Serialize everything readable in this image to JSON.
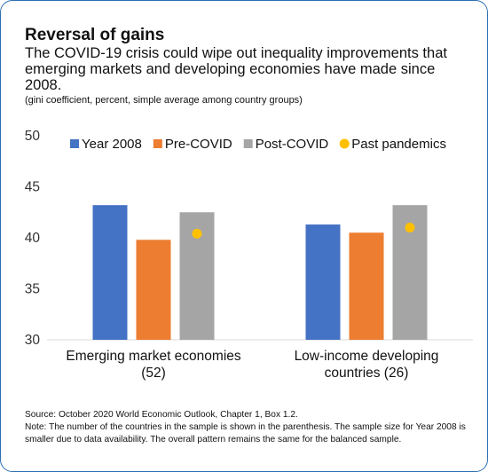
{
  "header": {
    "title": "Reversal of gains",
    "subtitle": "The COVID-19 crisis could wipe out inequality improvements that emerging markets and developing economies have made since 2008.",
    "units": "(gini coefficient, percent, simple average among country groups)"
  },
  "footer": {
    "source": "Source: October 2020 World Economic Outlook, Chapter 1, Box 1.2.",
    "note": "Note: The number of the countries in the sample is shown in the parenthesis. The sample size for Year 2008 is smaller due to data availability. The overall pattern remains the same for the balanced sample."
  },
  "chart_data": {
    "type": "bar",
    "categories": [
      [
        "Emerging market economies",
        "(52)"
      ],
      [
        "Low-income developing",
        "countries (26)"
      ]
    ],
    "series": [
      {
        "name": "Year 2008",
        "values": [
          43.2,
          41.3
        ],
        "color": "#4472c4",
        "kind": "bar"
      },
      {
        "name": "Pre-COVID",
        "values": [
          39.8,
          40.5
        ],
        "color": "#ed7d31",
        "kind": "bar"
      },
      {
        "name": "Post-COVID",
        "values": [
          42.5,
          43.2
        ],
        "color": "#a5a5a5",
        "kind": "bar"
      },
      {
        "name": "Past pandemics",
        "values": [
          40.4,
          41.0
        ],
        "color": "#ffc000",
        "kind": "point"
      }
    ],
    "ylim": [
      30,
      50
    ],
    "yticks": [
      30,
      35,
      40,
      45,
      50
    ],
    "grid": false,
    "legend": "top"
  }
}
